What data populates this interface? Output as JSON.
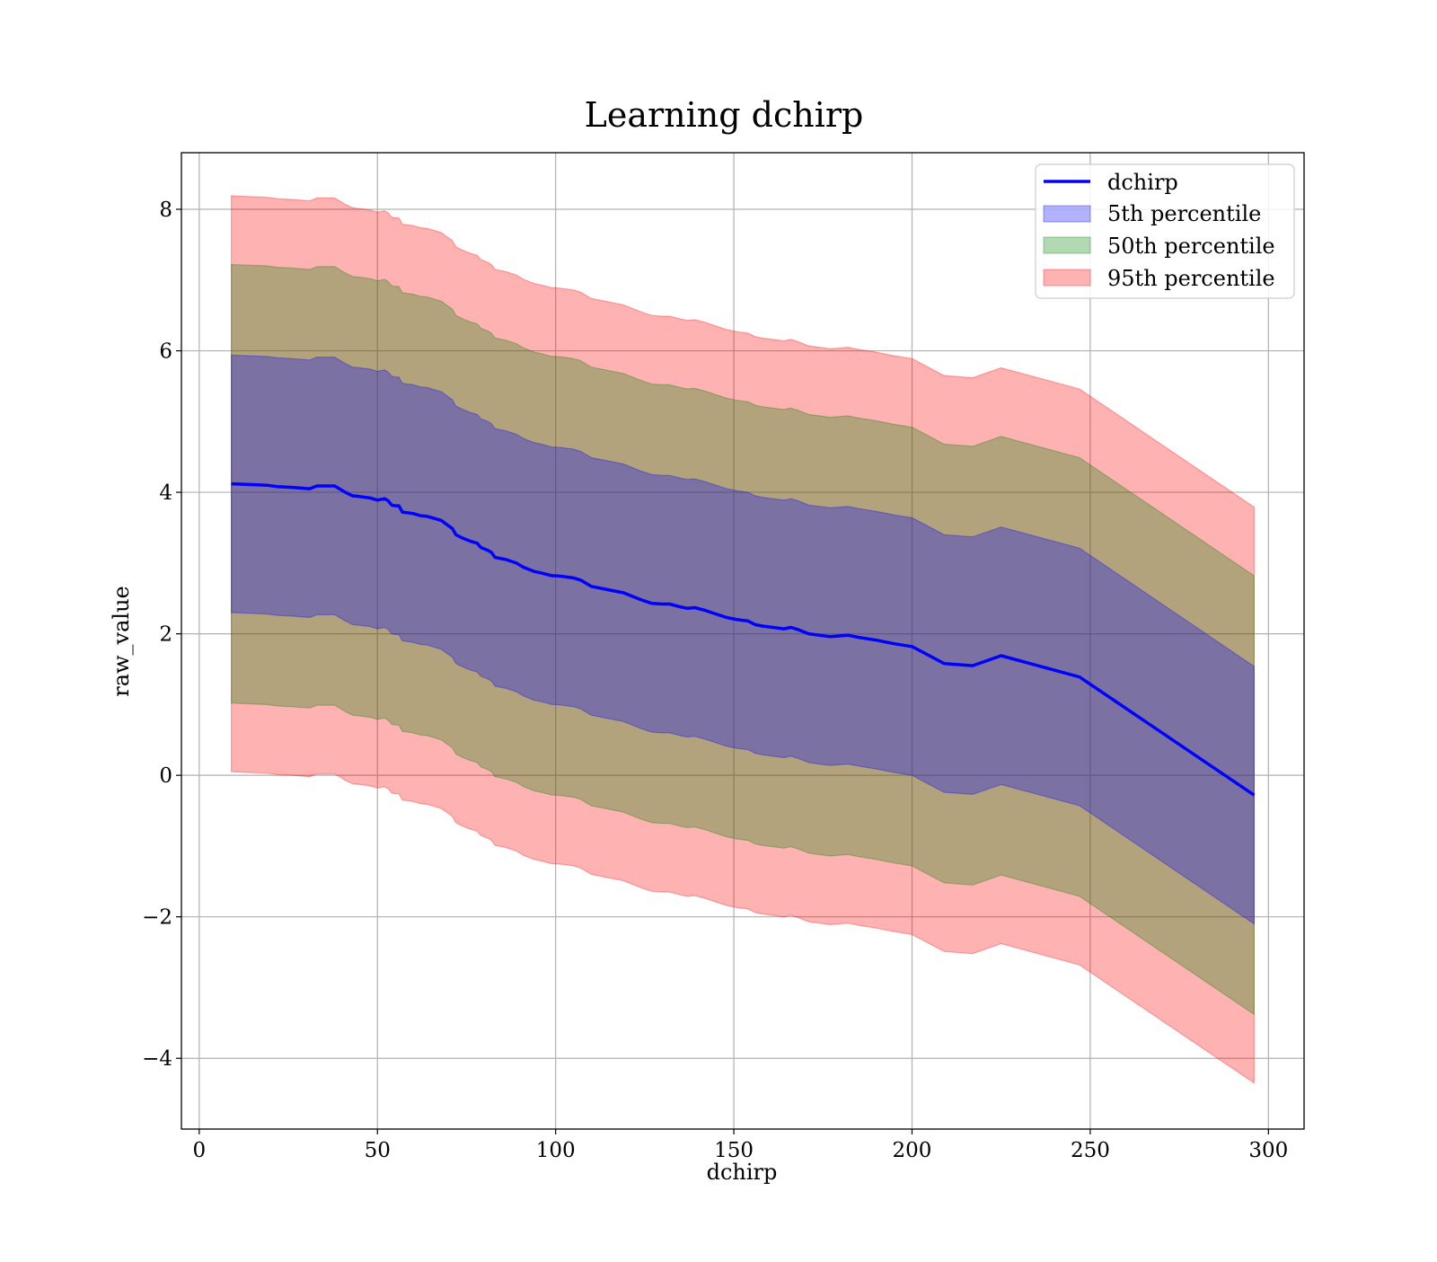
{
  "chart_data": {
    "type": "line",
    "title": "Learning dchirp",
    "xlabel": "dchirp",
    "ylabel": "raw_value",
    "xlim": [
      -5,
      310
    ],
    "ylim": [
      -5,
      8.8
    ],
    "xticks": [
      0,
      50,
      100,
      150,
      200,
      250,
      300
    ],
    "yticks": [
      -4,
      -2,
      0,
      2,
      4,
      6,
      8
    ],
    "xtick_labels": [
      "0",
      "50",
      "100",
      "150",
      "200",
      "250",
      "300"
    ],
    "ytick_labels": [
      "−4",
      "−2",
      "0",
      "2",
      "4",
      "6",
      "8"
    ],
    "grid": true,
    "legend_position": "upper right",
    "colors": {
      "line": "#0000ff",
      "band_5th": "#0000ff",
      "band_50th": "#008000",
      "band_95th": "#ff0000"
    },
    "x": [
      9,
      14,
      19,
      22,
      26,
      31,
      33,
      36,
      38,
      39,
      41,
      43,
      45,
      48,
      50,
      52,
      53,
      54,
      55,
      56,
      57,
      60,
      62,
      64,
      66,
      68,
      69,
      71,
      72,
      74,
      76,
      78,
      79,
      81,
      82,
      83,
      86,
      89,
      91,
      94,
      96,
      99,
      100,
      102,
      105,
      107,
      110,
      114,
      117,
      119,
      121,
      124,
      127,
      130,
      132,
      135,
      137,
      139,
      142,
      145,
      148,
      151,
      154,
      156,
      158,
      161,
      164,
      166,
      168,
      171,
      174,
      177,
      182,
      185,
      190,
      195,
      200,
      209,
      217,
      225,
      247,
      296
    ],
    "series": [
      {
        "name": "dchirp",
        "y": [
          4.12,
          4.11,
          4.1,
          4.08,
          4.07,
          4.05,
          4.09,
          4.09,
          4.09,
          4.06,
          4.0,
          3.95,
          3.94,
          3.92,
          3.89,
          3.91,
          3.88,
          3.82,
          3.81,
          3.81,
          3.72,
          3.7,
          3.67,
          3.66,
          3.63,
          3.6,
          3.56,
          3.49,
          3.4,
          3.35,
          3.31,
          3.28,
          3.22,
          3.18,
          3.15,
          3.08,
          3.05,
          3.0,
          2.94,
          2.88,
          2.86,
          2.82,
          2.82,
          2.81,
          2.79,
          2.76,
          2.67,
          2.63,
          2.6,
          2.58,
          2.54,
          2.48,
          2.43,
          2.42,
          2.42,
          2.38,
          2.36,
          2.37,
          2.33,
          2.28,
          2.23,
          2.2,
          2.18,
          2.13,
          2.11,
          2.09,
          2.07,
          2.09,
          2.06,
          2.0,
          1.98,
          1.96,
          1.98,
          1.95,
          1.91,
          1.86,
          1.82,
          1.58,
          1.55,
          1.69,
          1.39,
          -0.28
        ]
      },
      {
        "name": "5th percentile",
        "offset": 1.82
      },
      {
        "name": "50th percentile",
        "offset": 3.1
      },
      {
        "name": "95th percentile",
        "offset": 4.07
      }
    ]
  }
}
